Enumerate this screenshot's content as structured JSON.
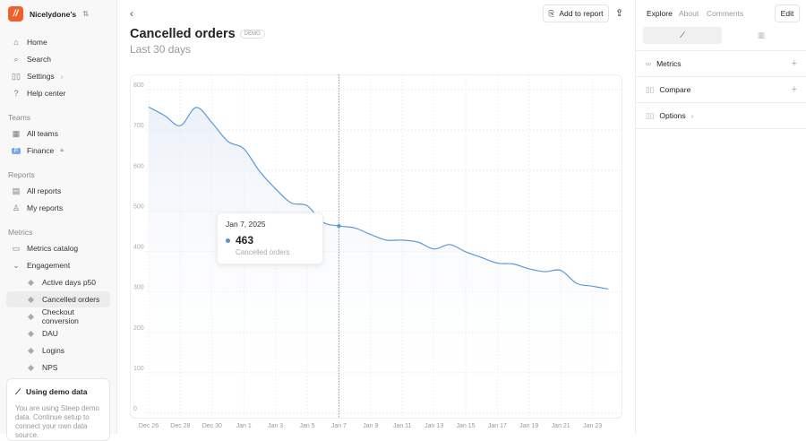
{
  "sidebar": {
    "workspace": "Nicelydone's",
    "nav": [
      {
        "label": "Home",
        "icon": "home-icon"
      },
      {
        "label": "Search",
        "icon": "search-icon"
      },
      {
        "label": "Settings",
        "icon": "settings-icon"
      },
      {
        "label": "Help center",
        "icon": "help-icon"
      }
    ],
    "teams_heading": "Teams",
    "teams": [
      {
        "label": "All teams"
      },
      {
        "label": "Finance",
        "badge": "F"
      }
    ],
    "reports_heading": "Reports",
    "reports": [
      {
        "label": "All reports"
      },
      {
        "label": "My reports"
      }
    ],
    "metrics_heading": "Metrics",
    "metrics_catalog": "Metrics catalog",
    "group": "Engagement",
    "metrics": [
      {
        "label": "Active days p50"
      },
      {
        "label": "Cancelled orders",
        "active": true
      },
      {
        "label": "Checkout conversion"
      },
      {
        "label": "DAU"
      },
      {
        "label": "Logins"
      },
      {
        "label": "NPS"
      }
    ],
    "demo": {
      "title": "Using demo data",
      "text": "You are using Steep demo data. Continue setup to connect your own data source."
    }
  },
  "header": {
    "title": "Cancelled orders",
    "badge": "DEMO",
    "subtitle": "Last 30 days",
    "add_to_report": "Add to report"
  },
  "tooltip": {
    "date": "Jan 7, 2025",
    "value": "463",
    "label": "Cancelled orders"
  },
  "right_panel": {
    "tabs": [
      "Explore",
      "About",
      "Comments"
    ],
    "active_tab": "Explore",
    "edit": "Edit",
    "sections": [
      "Metrics",
      "Compare",
      "Options"
    ]
  },
  "chart_data": {
    "type": "area",
    "ylim": [
      0,
      800
    ],
    "yticks": [
      "0",
      "100",
      "200",
      "300",
      "400",
      "500",
      "600",
      "700",
      "800"
    ],
    "xtick_labels": [
      "Dec 26",
      "Dec 28",
      "Dec 30",
      "Jan 1",
      "Jan 3",
      "Jan 5",
      "Jan 7",
      "Jan 9",
      "Jan 11",
      "Jan 13",
      "Jan 15",
      "Jan 17",
      "Jan 19",
      "Jan 21",
      "Jan 23"
    ],
    "x": [
      "Dec 26",
      "Dec 27",
      "Dec 28",
      "Dec 29",
      "Dec 30",
      "Dec 31",
      "Jan 1",
      "Jan 2",
      "Jan 3",
      "Jan 4",
      "Jan 5",
      "Jan 6",
      "Jan 7",
      "Jan 8",
      "Jan 9",
      "Jan 10",
      "Jan 11",
      "Jan 12",
      "Jan 13",
      "Jan 14",
      "Jan 15",
      "Jan 16",
      "Jan 17",
      "Jan 18",
      "Jan 19",
      "Jan 20",
      "Jan 21",
      "Jan 22",
      "Jan 23",
      "Jan 24"
    ],
    "values": [
      757,
      736,
      711,
      756,
      718,
      672,
      654,
      598,
      555,
      520,
      513,
      472,
      463,
      458,
      442,
      428,
      428,
      423,
      406,
      417,
      399,
      385,
      371,
      369,
      357,
      350,
      353,
      321,
      314,
      307
    ],
    "highlight": "Jan 7",
    "color": "#5a9bd5",
    "grid": true
  }
}
